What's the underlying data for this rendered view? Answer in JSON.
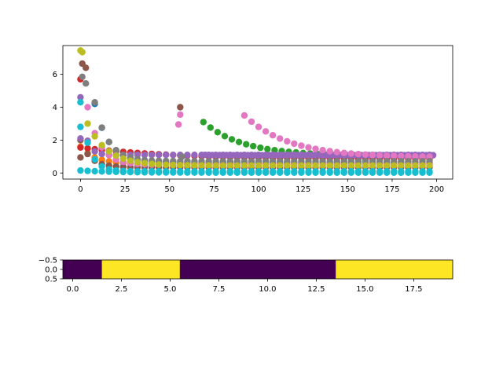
{
  "chart_data": [
    {
      "type": "scatter",
      "title": "",
      "xlabel": "",
      "ylabel": "",
      "xlim": [
        -9.9,
        209
      ],
      "ylim": [
        -0.37,
        7.75
      ],
      "xticks": [
        0,
        25,
        50,
        75,
        100,
        125,
        150,
        175,
        200
      ],
      "xtick_labels": [
        "0",
        "25",
        "50",
        "75",
        "100",
        "125",
        "150",
        "175",
        "200"
      ],
      "yticks": [
        0,
        2,
        4,
        6
      ],
      "ytick_labels": [
        "0",
        "2",
        "4",
        "6"
      ],
      "grid": false,
      "legend": "none",
      "point_step": 4,
      "series": [
        {
          "color": "#1f77b4",
          "start_x": 8,
          "start_y": 4.2,
          "end_y": 0.62,
          "rate": 0.13
        },
        {
          "color": "#ff7f0e",
          "start_x": 0,
          "start_y": 1.6,
          "end_y": 0.55,
          "rate": 0.12
        },
        {
          "color": "#2ca02c",
          "start_x": 69,
          "start_y": 3.1,
          "end_y": 1.05,
          "rate": 0.045
        },
        {
          "color": "#d62728",
          "start_x": 0,
          "start_y": 1.55,
          "end_y": 0.85,
          "rate": 0.02
        },
        {
          "color": "#9467bd",
          "start_x": 0,
          "start_y": 4.6,
          "end_y": 1.1,
          "rate": 0.35
        },
        {
          "color": "#9467bd",
          "start_x": 70,
          "start_y": 1.1,
          "end_y": 1.08,
          "rate": 0.1
        },
        {
          "color": "#8c564b",
          "start_x": 0,
          "start_y": 2.0,
          "end_y": 0.35,
          "rate": 0.18
        },
        {
          "color": "#e377c2",
          "start_x": 92,
          "start_y": 3.5,
          "end_y": 0.95,
          "rate": 0.04
        },
        {
          "color": "#e377c2",
          "start_x": 4,
          "start_y": 4.0,
          "end_y": 0.5,
          "rate": 0.15
        },
        {
          "color": "#7f7f7f",
          "start_x": 8,
          "start_y": 4.3,
          "end_y": 0.72,
          "rate": 0.14
        },
        {
          "color": "#bcbd22",
          "start_x": 4,
          "start_y": 3.0,
          "end_y": 0.45,
          "rate": 0.09
        },
        {
          "color": "#17becf",
          "start_x": 0,
          "start_y": 4.3,
          "end_y": 0.1,
          "rate": 0.22
        },
        {
          "color": "#17becf",
          "start_x": 0,
          "start_y": 0.15,
          "end_y": 0.02,
          "rate": 0.05
        }
      ],
      "outliers": [
        {
          "x": 0,
          "y": 7.45,
          "color": "#bcbd22"
        },
        {
          "x": 1,
          "y": 7.35,
          "color": "#bcbd22"
        },
        {
          "x": 1,
          "y": 6.65,
          "color": "#8c564b"
        },
        {
          "x": 3,
          "y": 6.4,
          "color": "#8c564b"
        },
        {
          "x": 0,
          "y": 5.7,
          "color": "#d62728"
        },
        {
          "x": 1,
          "y": 5.85,
          "color": "#7f7f7f"
        },
        {
          "x": 3,
          "y": 5.45,
          "color": "#7f7f7f"
        },
        {
          "x": 55,
          "y": 2.95,
          "color": "#e377c2"
        },
        {
          "x": 56,
          "y": 3.55,
          "color": "#e377c2"
        },
        {
          "x": 56,
          "y": 4.0,
          "color": "#8c564b"
        },
        {
          "x": 57,
          "y": 1.0,
          "color": "#7f7f7f"
        },
        {
          "x": 0,
          "y": 2.8,
          "color": "#17becf"
        },
        {
          "x": 0,
          "y": 2.1,
          "color": "#9467bd"
        },
        {
          "x": 0,
          "y": 0.95,
          "color": "#8c564b"
        }
      ]
    },
    {
      "type": "heatmap",
      "title": "",
      "xlabel": "",
      "ylabel": "",
      "values": [
        0,
        0,
        1,
        1,
        1,
        1,
        0,
        0,
        0,
        0,
        0,
        0,
        0,
        0,
        1,
        1,
        1,
        1,
        1,
        1
      ],
      "colormap": {
        "0": "#440154",
        "1": "#fde725"
      },
      "xlim": [
        -0.5,
        19.5
      ],
      "ylim": [
        0.5,
        -0.5
      ],
      "xticks": [
        0,
        2.5,
        5,
        7.5,
        10,
        12.5,
        15,
        17.5
      ],
      "xtick_labels": [
        "0.0",
        "2.5",
        "5.0",
        "7.5",
        "10.0",
        "12.5",
        "15.0",
        "17.5"
      ],
      "yticks": [
        -0.5,
        0,
        0.5
      ],
      "ytick_labels": [
        "−0.5",
        "0.0",
        "0.5"
      ]
    }
  ]
}
